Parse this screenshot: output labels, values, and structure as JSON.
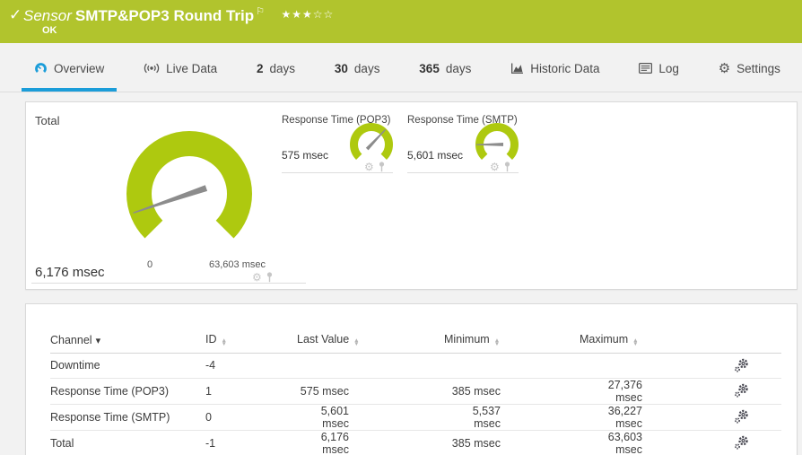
{
  "icons": {
    "check": "✓",
    "flag": "⚐",
    "star_filled": "★",
    "star_empty": "☆",
    "gear": "⚙",
    "sort_desc": "▾",
    "sort_up": "▲",
    "sort_down": "▼"
  },
  "header": {
    "kind_label": "Sensor",
    "title": "SMTP&POP3 Round Trip",
    "status": "OK",
    "rating_filled": 3,
    "rating_total": 5
  },
  "tabs": [
    {
      "label": "Overview",
      "active": true
    },
    {
      "label": "Live Data"
    },
    {
      "num": "2",
      "label": "days"
    },
    {
      "num": "30",
      "label": "days"
    },
    {
      "num": "365",
      "label": "days"
    },
    {
      "label": "Historic Data"
    },
    {
      "label": "Log"
    },
    {
      "label": "Settings"
    }
  ],
  "chart_data": [
    {
      "type": "gauge",
      "title": "Total",
      "value": 6176,
      "value_label": "6,176 msec",
      "min": 0,
      "min_label": "0",
      "max": 63603,
      "max_label": "63,603 msec",
      "unit": "msec",
      "sweep_deg": 270,
      "arc_color": "#aec90f"
    },
    {
      "type": "gauge",
      "title": "Response Time (POP3)",
      "value": 575,
      "value_label": "575 msec",
      "unit": "msec",
      "sweep_deg": 270,
      "arc_color": "#aec90f",
      "needle_fraction": 0.66
    },
    {
      "type": "gauge",
      "title": "Response Time (SMTP)",
      "value": 5601,
      "value_label": "5,601 msec",
      "unit": "msec",
      "sweep_deg": 270,
      "arc_color": "#aec90f",
      "needle_fraction": 0.165
    }
  ],
  "table": {
    "columns": [
      {
        "label": "Channel",
        "sorted": "desc"
      },
      {
        "label": "ID"
      },
      {
        "label": "Last Value"
      },
      {
        "label": "Minimum"
      },
      {
        "label": "Maximum"
      }
    ],
    "rows": [
      {
        "channel": "Downtime",
        "id": "-4",
        "last": "",
        "min": "",
        "max": ""
      },
      {
        "channel": "Response Time (POP3)",
        "id": "1",
        "last": "575 msec",
        "min": "385 msec",
        "max": "27,376 msec"
      },
      {
        "channel": "Response Time (SMTP)",
        "id": "0",
        "last": "5,601 msec",
        "min": "5,537 msec",
        "max": "36,227 msec"
      },
      {
        "channel": "Total",
        "id": "-1",
        "last": "6,176 msec",
        "min": "385 msec",
        "max": "63,603 msec"
      }
    ]
  },
  "colors": {
    "green": "#b1c42d",
    "arc_green": "#aec90f",
    "blue": "#1b9dd9",
    "needle_gray": "#8c8c8c"
  }
}
